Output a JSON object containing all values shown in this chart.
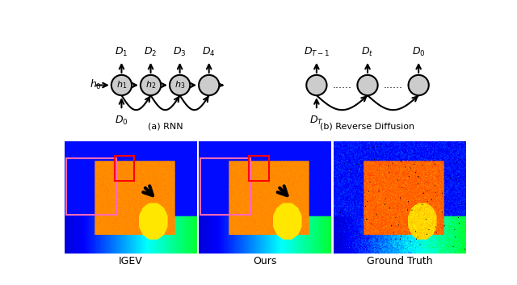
{
  "bg_color": "#ffffff",
  "fig_width": 6.4,
  "fig_height": 3.53,
  "dpi": 100,
  "top_label_a": "(a) RNN",
  "top_label_b": "(b) Reverse Diffusion",
  "bottom_labels": [
    "IGEV",
    "Ours",
    "Ground Truth"
  ]
}
